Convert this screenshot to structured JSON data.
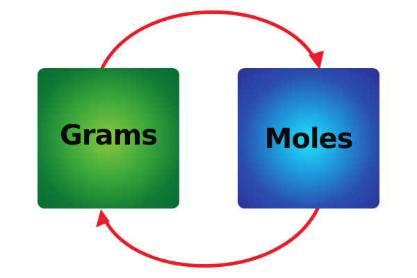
{
  "diagram": {
    "nodes": [
      {
        "id": "grams",
        "label": "Grams"
      },
      {
        "id": "moles",
        "label": "Moles"
      }
    ],
    "edges": [
      {
        "from": "grams",
        "to": "moles"
      },
      {
        "from": "moles",
        "to": "grams"
      }
    ],
    "colors": {
      "arrow": "#ec1c2a",
      "grams_center": "#88c93e",
      "grams_edge": "#076b33",
      "moles_center": "#1fe3f7",
      "moles_edge": "#2e2f96",
      "label_text": "#0a0a0a",
      "background": "#ffffff"
    }
  }
}
